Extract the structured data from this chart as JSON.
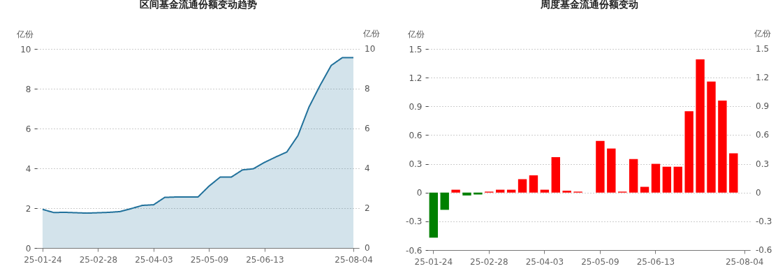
{
  "chart_data": [
    {
      "type": "area",
      "title": "区间基金流通份额变动趋势",
      "ylabel": "亿份",
      "y2label": "亿份",
      "categories": [
        "25-01-24",
        null,
        null,
        null,
        null,
        "25-02-28",
        null,
        null,
        null,
        null,
        "25-04-03",
        null,
        null,
        null,
        null,
        "25-05-09",
        null,
        null,
        null,
        null,
        "25-06-13",
        null,
        null,
        null,
        null,
        null,
        null,
        null,
        "25-08-04"
      ],
      "series": [
        {
          "color": "#21719b",
          "values": [
            1.94,
            1.78,
            1.79,
            1.77,
            1.75,
            1.77,
            1.79,
            1.83,
            1.98,
            2.14,
            2.17,
            2.54,
            2.56,
            2.56,
            2.56,
            3.11,
            3.56,
            3.56,
            3.92,
            3.98,
            4.3,
            4.57,
            4.82,
            5.64,
            7.08,
            8.17,
            9.17,
            9.56,
            9.56
          ]
        }
      ],
      "ylim": [
        0,
        10
      ],
      "yticks": [
        0,
        2,
        4,
        6,
        8,
        10
      ],
      "y2lim": [
        0,
        10
      ],
      "y2ticks": [
        0,
        2,
        4,
        6,
        8,
        10
      ],
      "grid": "y"
    },
    {
      "type": "bar",
      "title": "周度基金流通份额变动",
      "ylabel": "亿份",
      "y2label": "亿份",
      "categories": [
        "25-01-24",
        null,
        null,
        null,
        null,
        "25-02-28",
        null,
        null,
        null,
        null,
        "25-04-03",
        null,
        null,
        null,
        null,
        "25-05-09",
        null,
        null,
        null,
        null,
        "25-06-13",
        null,
        null,
        null,
        null,
        null,
        null,
        null,
        "25-08-04"
      ],
      "values": [
        -0.47,
        -0.18,
        0.03,
        -0.03,
        -0.02,
        0.01,
        0.03,
        0.03,
        0.14,
        0.18,
        0.03,
        0.37,
        0.02,
        0.01,
        0,
        0.54,
        0.46,
        0.01,
        0.35,
        0.06,
        0.3,
        0.27,
        0.27,
        0.85,
        1.39,
        1.16,
        0.96,
        0.41,
        null
      ],
      "colors": [
        "#008000",
        "#008000",
        "#ff0000",
        "#008000",
        "#008000",
        "#ff0000",
        "#ff0000",
        "#ff0000",
        "#ff0000",
        "#ff0000",
        "#ff0000",
        "#ff0000",
        "#ff0000",
        "#ff0000",
        "#ff0000",
        "#ff0000",
        "#ff0000",
        "#ff0000",
        "#ff0000",
        "#ff0000",
        "#ff0000",
        "#ff0000",
        "#ff0000",
        "#ff0000",
        "#ff0000",
        "#ff0000",
        "#ff0000",
        "#ff0000",
        "#ff0000"
      ],
      "ylim": [
        -0.6,
        1.5
      ],
      "yticks": [
        -0.6,
        -0.3,
        0,
        0.3,
        0.6,
        0.9,
        1.2,
        1.5
      ],
      "y2lim": [
        -0.6,
        1.5
      ],
      "y2ticks": [
        -0.6,
        -0.3,
        0,
        0.3,
        0.6,
        0.9,
        1.2,
        1.5
      ],
      "grid": "y"
    }
  ]
}
